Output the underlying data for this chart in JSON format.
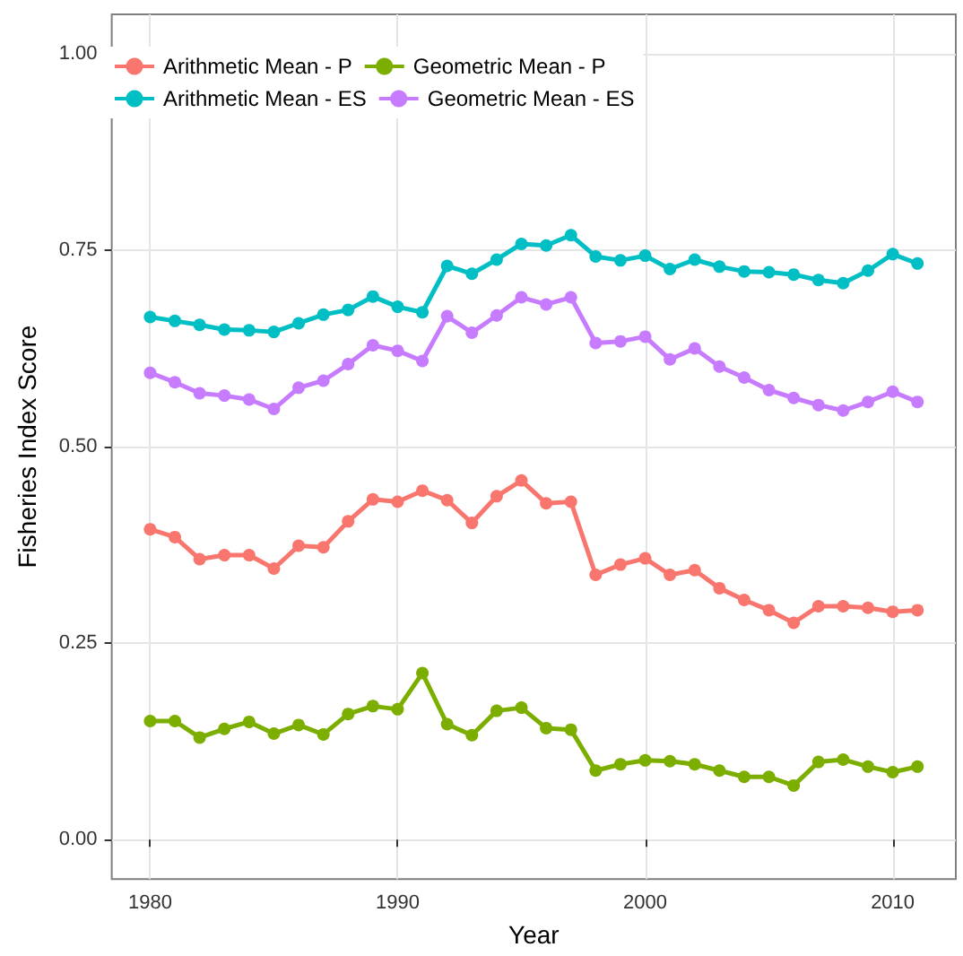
{
  "chart_data": {
    "type": "line",
    "xlabel": "Year",
    "ylabel": "Fisheries Index Score",
    "x": [
      1980,
      1981,
      1982,
      1983,
      1984,
      1985,
      1986,
      1987,
      1988,
      1989,
      1990,
      1991,
      1992,
      1993,
      1994,
      1995,
      1996,
      1997,
      1998,
      1999,
      2000,
      2001,
      2002,
      2003,
      2004,
      2005,
      2006,
      2007,
      2008,
      2009,
      2010,
      2011
    ],
    "series": [
      {
        "name": "Arithmetic Mean - P",
        "color": "#f8766d",
        "values": [
          0.395,
          0.385,
          0.357,
          0.362,
          0.362,
          0.345,
          0.374,
          0.372,
          0.405,
          0.433,
          0.43,
          0.444,
          0.432,
          0.403,
          0.437,
          0.457,
          0.428,
          0.43,
          0.337,
          0.35,
          0.358,
          0.337,
          0.343,
          0.32,
          0.305,
          0.292,
          0.276,
          0.297,
          0.297,
          0.295,
          0.29,
          0.292
        ]
      },
      {
        "name": "Arithmetic Mean - ES",
        "color": "#00bfc4",
        "values": [
          0.665,
          0.66,
          0.655,
          0.649,
          0.648,
          0.646,
          0.657,
          0.668,
          0.674,
          0.691,
          0.678,
          0.671,
          0.73,
          0.72,
          0.738,
          0.758,
          0.756,
          0.769,
          0.742,
          0.737,
          0.743,
          0.726,
          0.738,
          0.729,
          0.723,
          0.722,
          0.719,
          0.712,
          0.708,
          0.724,
          0.745,
          0.733
        ]
      },
      {
        "name": "Geometric Mean - P",
        "color": "#7cae00",
        "values": [
          0.151,
          0.151,
          0.13,
          0.141,
          0.15,
          0.135,
          0.146,
          0.134,
          0.16,
          0.17,
          0.166,
          0.212,
          0.147,
          0.133,
          0.164,
          0.168,
          0.142,
          0.14,
          0.088,
          0.096,
          0.101,
          0.1,
          0.096,
          0.088,
          0.08,
          0.08,
          0.069,
          0.099,
          0.102,
          0.093,
          0.086,
          0.093
        ]
      },
      {
        "name": "Geometric Mean - ES",
        "color": "#c77cff",
        "values": [
          0.594,
          0.582,
          0.568,
          0.565,
          0.56,
          0.548,
          0.575,
          0.584,
          0.605,
          0.629,
          0.622,
          0.609,
          0.666,
          0.645,
          0.667,
          0.69,
          0.681,
          0.69,
          0.632,
          0.634,
          0.64,
          0.611,
          0.625,
          0.602,
          0.588,
          0.572,
          0.562,
          0.553,
          0.546,
          0.557,
          0.57,
          0.557
        ]
      }
    ],
    "xlim": [
      1978.45,
      2012.55
    ],
    "xticks": [
      1980,
      1990,
      2000,
      2010
    ],
    "ylim": [
      -0.05,
      1.05
    ],
    "yticks": [
      {
        "value": 0,
        "label": "0.00"
      },
      {
        "value": 0.25,
        "label": "0.25"
      },
      {
        "value": 0.5,
        "label": "0.50"
      },
      {
        "value": 0.75,
        "label": "0.75"
      },
      {
        "value": 1,
        "label": "1.00"
      }
    ],
    "grid": true,
    "legend": "top left",
    "marker": "circle",
    "line_style": "solid"
  }
}
